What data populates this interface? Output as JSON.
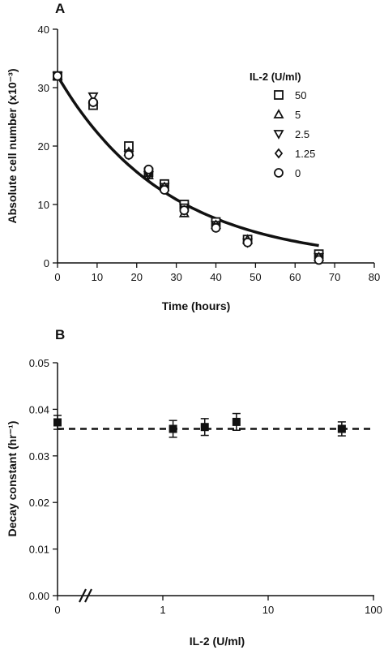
{
  "chart_data": [
    {
      "panel": "A",
      "type": "scatter",
      "xlabel": "Time (hours)",
      "ylabel": "Absolute cell number (x10⁻³)",
      "xlim": [
        0,
        80
      ],
      "ylim": [
        0,
        40
      ],
      "xticks": [
        0,
        10,
        20,
        30,
        40,
        50,
        60,
        70,
        80
      ],
      "yticks": [
        0,
        10,
        20,
        30,
        40
      ],
      "grid": false,
      "legend_title": "IL-2 (U/ml)",
      "legend_position": "top-right",
      "series": [
        {
          "name": "50",
          "marker": "square",
          "x": [
            0,
            9,
            18,
            23,
            27,
            32,
            40,
            48,
            66
          ],
          "y": [
            32,
            27,
            20,
            15.5,
            13.5,
            10,
            7,
            4,
            1.5
          ]
        },
        {
          "name": "5",
          "marker": "triangle-up",
          "x": [
            0,
            9,
            18,
            23,
            27,
            32,
            40,
            48,
            66
          ],
          "y": [
            32,
            28,
            19,
            15,
            13,
            8.5,
            6.5,
            4,
            1
          ]
        },
        {
          "name": "2.5",
          "marker": "triangle-down",
          "x": [
            0,
            9,
            18,
            23,
            27,
            32,
            40,
            48,
            66
          ],
          "y": [
            32,
            28.5,
            18.5,
            15,
            13,
            9.5,
            6.5,
            3.5,
            1
          ]
        },
        {
          "name": "1.25",
          "marker": "diamond",
          "x": [
            0,
            9,
            18,
            23,
            27,
            32,
            40,
            48,
            66
          ],
          "y": [
            32,
            27.5,
            18.5,
            15.5,
            13,
            9,
            6.5,
            3.5,
            1
          ]
        },
        {
          "name": "0",
          "marker": "circle",
          "x": [
            0,
            9,
            18,
            23,
            27,
            32,
            40,
            48,
            66
          ],
          "y": [
            32,
            27.5,
            18.5,
            16,
            12.5,
            9,
            6,
            3.5,
            0.5
          ]
        }
      ],
      "fit_curve": {
        "type": "exponential-decay",
        "y0": 32,
        "k": 0.036,
        "x_range": [
          0,
          66
        ]
      }
    },
    {
      "panel": "B",
      "type": "scatter",
      "xlabel": "IL-2 (U/ml)",
      "ylabel": "Decay constant (hr⁻¹)",
      "x_scale": "log",
      "x_axis_break": true,
      "xlim": [
        0.1,
        100
      ],
      "ylim": [
        0,
        0.05
      ],
      "xtick_labels": [
        "0",
        "1",
        "10",
        "100"
      ],
      "xtick_values": [
        0,
        1,
        10,
        100
      ],
      "ytick_labels": [
        "0.00",
        "0.01",
        "0.02",
        "0.03",
        "0.04",
        "0.05"
      ],
      "yticks": [
        0,
        0.01,
        0.02,
        0.03,
        0.04,
        0.05
      ],
      "grid": false,
      "points": [
        {
          "x": 0,
          "y": 0.0372,
          "err": 0.0015
        },
        {
          "x": 1.25,
          "y": 0.0358,
          "err": 0.0018
        },
        {
          "x": 2.5,
          "y": 0.0362,
          "err": 0.0018
        },
        {
          "x": 5,
          "y": 0.0373,
          "err": 0.0018
        },
        {
          "x": 50,
          "y": 0.0358,
          "err": 0.0015
        }
      ],
      "reference_line": {
        "y": 0.0358,
        "style": "dashed"
      }
    }
  ]
}
